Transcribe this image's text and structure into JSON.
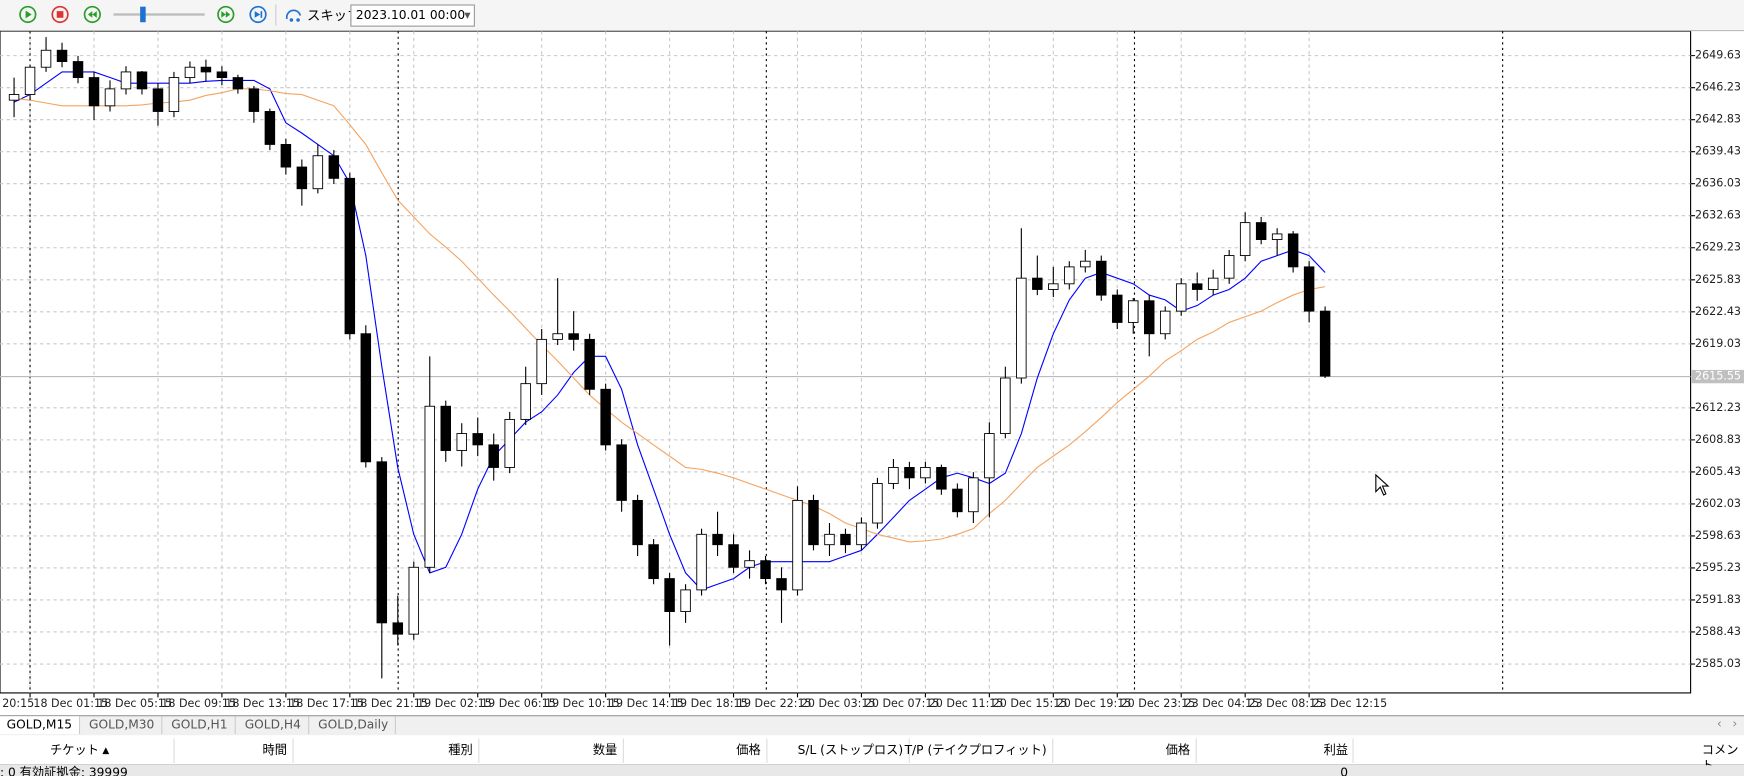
{
  "toolbar": {
    "skip_label": "スキップ",
    "date": "2023.10.01 00:00"
  },
  "chart_data": {
    "type": "candlestick",
    "up_color": "#ffffff",
    "down_color": "#000000",
    "grid": true,
    "open": [
      2644.9,
      2645.5,
      2648.4,
      2650.2,
      2649.0,
      2647.3,
      2644.3,
      2646.1,
      2647.9,
      2646.1,
      2643.7,
      2647.3,
      2648.4,
      2647.9,
      2647.3,
      2646.1,
      2643.7,
      2640.2,
      2637.8,
      2635.5,
      2639.0,
      2636.6,
      2620.1,
      2606.5,
      2589.4,
      2588.2,
      2595.3,
      2612.4,
      2607.7,
      2609.5,
      2608.3,
      2605.9,
      2611.0,
      2614.8,
      2619.5,
      2620.1,
      2619.5,
      2614.2,
      2608.3,
      2602.4,
      2597.7,
      2594.1,
      2590.6,
      2592.9,
      2598.8,
      2597.7,
      2595.3,
      2596.0,
      2594.1,
      2592.9,
      2602.4,
      2597.7,
      2598.8,
      2597.7,
      2600.0,
      2604.2,
      2605.9,
      2604.8,
      2605.9,
      2603.6,
      2601.2,
      2604.8,
      2609.5,
      2615.4,
      2626.0,
      2624.8,
      2625.4,
      2627.2,
      2627.8,
      2624.2,
      2621.3,
      2623.6,
      2620.1,
      2622.5,
      2625.4,
      2624.8,
      2626.0,
      2628.4,
      2631.9,
      2630.1,
      2630.7,
      2627.2,
      2622.5
    ],
    "high": [
      2647.3,
      2648.5,
      2651.6,
      2651.0,
      2649.6,
      2647.9,
      2647.0,
      2648.5,
      2648.0,
      2646.7,
      2647.9,
      2649.0,
      2649.2,
      2648.5,
      2647.6,
      2646.4,
      2644.0,
      2640.8,
      2638.6,
      2640.2,
      2639.6,
      2637.2,
      2621.0,
      2607.0,
      2592.3,
      2595.9,
      2617.7,
      2613.0,
      2610.6,
      2611.2,
      2609.5,
      2611.8,
      2616.6,
      2620.6,
      2626.0,
      2622.5,
      2620.1,
      2614.8,
      2608.9,
      2603.0,
      2598.3,
      2594.7,
      2593.5,
      2599.4,
      2601.2,
      2598.8,
      2597.1,
      2596.5,
      2595.3,
      2603.9,
      2603.0,
      2600.0,
      2599.4,
      2600.6,
      2604.8,
      2606.8,
      2606.5,
      2606.5,
      2606.2,
      2604.2,
      2605.4,
      2610.7,
      2616.6,
      2631.3,
      2628.4,
      2627.2,
      2627.8,
      2629.0,
      2628.4,
      2624.8,
      2623.9,
      2624.2,
      2623.0,
      2626.0,
      2626.6,
      2626.9,
      2629.0,
      2633.0,
      2632.5,
      2631.3,
      2631.0,
      2627.8,
      2623.0
    ],
    "low": [
      2643.1,
      2644.9,
      2647.9,
      2648.4,
      2646.7,
      2642.8,
      2643.7,
      2645.5,
      2645.5,
      2642.2,
      2643.1,
      2646.7,
      2646.9,
      2646.5,
      2645.6,
      2642.5,
      2639.6,
      2637.0,
      2633.7,
      2635.0,
      2636.0,
      2619.5,
      2605.9,
      2583.5,
      2587.0,
      2587.6,
      2594.7,
      2606.5,
      2606.0,
      2607.1,
      2604.5,
      2605.3,
      2610.4,
      2613.6,
      2618.9,
      2618.3,
      2613.6,
      2607.7,
      2601.2,
      2596.5,
      2593.5,
      2587.0,
      2589.4,
      2592.3,
      2596.5,
      2594.7,
      2594.1,
      2593.5,
      2589.4,
      2592.3,
      2597.1,
      2596.5,
      2596.8,
      2597.1,
      2599.4,
      2603.6,
      2603.6,
      2604.2,
      2603.0,
      2600.6,
      2600.0,
      2600.6,
      2609.0,
      2614.8,
      2624.2,
      2624.0,
      2624.8,
      2626.6,
      2623.6,
      2620.6,
      2620.1,
      2617.7,
      2619.5,
      2622.0,
      2623.6,
      2624.2,
      2625.4,
      2627.8,
      2629.6,
      2628.4,
      2626.6,
      2621.3,
      2615.4
    ],
    "close": [
      2645.5,
      2648.4,
      2650.2,
      2649.0,
      2647.3,
      2644.3,
      2646.1,
      2647.9,
      2646.1,
      2643.7,
      2647.3,
      2648.4,
      2647.9,
      2647.3,
      2646.1,
      2643.7,
      2640.2,
      2637.8,
      2635.5,
      2639.0,
      2636.6,
      2620.1,
      2606.5,
      2589.4,
      2588.2,
      2595.3,
      2612.4,
      2607.7,
      2609.5,
      2608.3,
      2605.9,
      2611.0,
      2614.8,
      2619.5,
      2620.1,
      2619.5,
      2614.2,
      2608.3,
      2602.4,
      2597.7,
      2594.1,
      2590.6,
      2592.9,
      2598.8,
      2597.7,
      2595.3,
      2596.0,
      2594.1,
      2592.9,
      2602.4,
      2597.7,
      2598.8,
      2597.7,
      2600.0,
      2604.2,
      2605.9,
      2604.8,
      2605.9,
      2603.6,
      2601.2,
      2604.8,
      2609.5,
      2615.4,
      2626.0,
      2624.8,
      2625.4,
      2627.2,
      2627.8,
      2624.2,
      2621.3,
      2623.6,
      2620.1,
      2622.5,
      2625.4,
      2624.8,
      2626.0,
      2628.4,
      2631.9,
      2630.1,
      2630.7,
      2627.2,
      2622.5,
      2615.6
    ],
    "moving_averages": [
      {
        "color": "#0000ff",
        "values": [
          2644.7,
          2645.5,
          2646.7,
          2647.9,
          2647.9,
          2647.9,
          2647.3,
          2646.7,
          2646.7,
          2646.7,
          2646.7,
          2646.7,
          2646.9,
          2647.0,
          2647.0,
          2647.0,
          2646.1,
          2642.5,
          2641.4,
          2640.2,
          2639.0,
          2636.1,
          2628.4,
          2616.6,
          2605.9,
          2598.8,
          2594.7,
          2595.3,
          2598.8,
          2603.6,
          2607.1,
          2608.9,
          2610.7,
          2611.8,
          2613.6,
          2616.0,
          2617.7,
          2617.7,
          2614.2,
          2608.3,
          2603.6,
          2598.8,
          2594.7,
          2592.9,
          2593.5,
          2594.1,
          2595.3,
          2595.9,
          2595.9,
          2595.9,
          2595.9,
          2595.9,
          2596.5,
          2597.1,
          2598.8,
          2600.6,
          2602.4,
          2603.6,
          2604.8,
          2605.3,
          2604.8,
          2604.2,
          2605.3,
          2609.5,
          2615.4,
          2620.1,
          2623.7,
          2626.0,
          2626.6,
          2626.0,
          2625.4,
          2624.2,
          2623.7,
          2622.5,
          2623.1,
          2624.2,
          2624.8,
          2626.0,
          2627.8,
          2628.4,
          2629.0,
          2628.4,
          2626.6
        ]
      },
      {
        "color": "#f4a460",
        "values": [
          2645.1,
          2644.9,
          2644.6,
          2644.3,
          2644.3,
          2644.3,
          2644.3,
          2644.3,
          2644.4,
          2644.6,
          2644.7,
          2644.9,
          2645.4,
          2645.7,
          2646.1,
          2646.1,
          2645.9,
          2645.6,
          2645.5,
          2644.9,
          2644.3,
          2642.3,
          2640.2,
          2637.2,
          2634.3,
          2632.5,
          2630.7,
          2629.3,
          2627.8,
          2626.0,
          2624.2,
          2622.5,
          2620.7,
          2618.9,
          2617.2,
          2615.4,
          2613.6,
          2612.1,
          2610.7,
          2609.5,
          2608.3,
          2607.1,
          2605.9,
          2605.7,
          2605.3,
          2604.8,
          2604.2,
          2603.6,
          2603.0,
          2602.4,
          2601.8,
          2601.0,
          2600.0,
          2599.4,
          2598.8,
          2598.4,
          2598.0,
          2598.1,
          2598.3,
          2598.8,
          2599.4,
          2601.0,
          2602.4,
          2604.2,
          2605.9,
          2607.1,
          2608.3,
          2609.7,
          2611.2,
          2612.8,
          2614.2,
          2615.6,
          2617.2,
          2618.3,
          2619.5,
          2620.3,
          2621.3,
          2621.9,
          2622.5,
          2623.4,
          2624.2,
          2624.8,
          2625.1
        ]
      }
    ],
    "current_price": 2615.55,
    "xlim": [
      -0.88,
      104.86
    ],
    "xticks": [
      {
        "value": -3,
        "label": "20:15"
      },
      {
        "value": 1,
        "label": "18 Dec 01:15"
      },
      {
        "value": 5,
        "label": "18 Dec 05:15"
      },
      {
        "value": 9,
        "label": "18 Dec 09:15"
      },
      {
        "value": 13,
        "label": "18 Dec 13:15"
      },
      {
        "value": 17,
        "label": "18 Dec 17:15"
      },
      {
        "value": 21,
        "label": "18 Dec 21:15"
      },
      {
        "value": 25,
        "label": "19 Dec 02:15"
      },
      {
        "value": 29,
        "label": "19 Dec 06:15"
      },
      {
        "value": 33,
        "label": "19 Dec 10:15"
      },
      {
        "value": 37,
        "label": "19 Dec 14:15"
      },
      {
        "value": 41,
        "label": "19 Dec 18:15"
      },
      {
        "value": 45,
        "label": "19 Dec 22:15"
      },
      {
        "value": 49,
        "label": "20 Dec 03:15"
      },
      {
        "value": 53,
        "label": "20 Dec 07:15"
      },
      {
        "value": 57,
        "label": "20 Dec 11:15"
      },
      {
        "value": 61,
        "label": "20 Dec 15:15"
      },
      {
        "value": 65,
        "label": "20 Dec 19:15"
      },
      {
        "value": 69,
        "label": "20 Dec 23:15"
      },
      {
        "value": 73,
        "label": "23 Dec 04:15"
      },
      {
        "value": 77,
        "label": "23 Dec 08:15"
      },
      {
        "value": 81,
        "label": "23 Dec 12:15"
      }
    ],
    "ylim": [
      2581.96,
      2652.23
    ],
    "yticks": [
      2649.63,
      2646.23,
      2642.83,
      2639.43,
      2636.03,
      2632.63,
      2629.23,
      2625.83,
      2622.43,
      2619.03,
      2612.23,
      2608.83,
      2605.43,
      2602.03,
      2598.63,
      2595.23,
      2591.83,
      2588.43,
      2585.03
    ]
  },
  "tabs": [
    "GOLD,M15",
    "GOLD,M30",
    "GOLD,H1",
    "GOLD,H4",
    "GOLD,Daily"
  ],
  "table": {
    "headers": [
      "チケット",
      "時間",
      "種別",
      "数量",
      "価格",
      "S/L (ストップロス)",
      "T/P (テイクプロフィット)",
      "価格",
      "利益",
      "コメント"
    ],
    "sort_indicator": "▲",
    "summary": ": 0  有効証拠金: 39999",
    "profit_total": "0"
  }
}
